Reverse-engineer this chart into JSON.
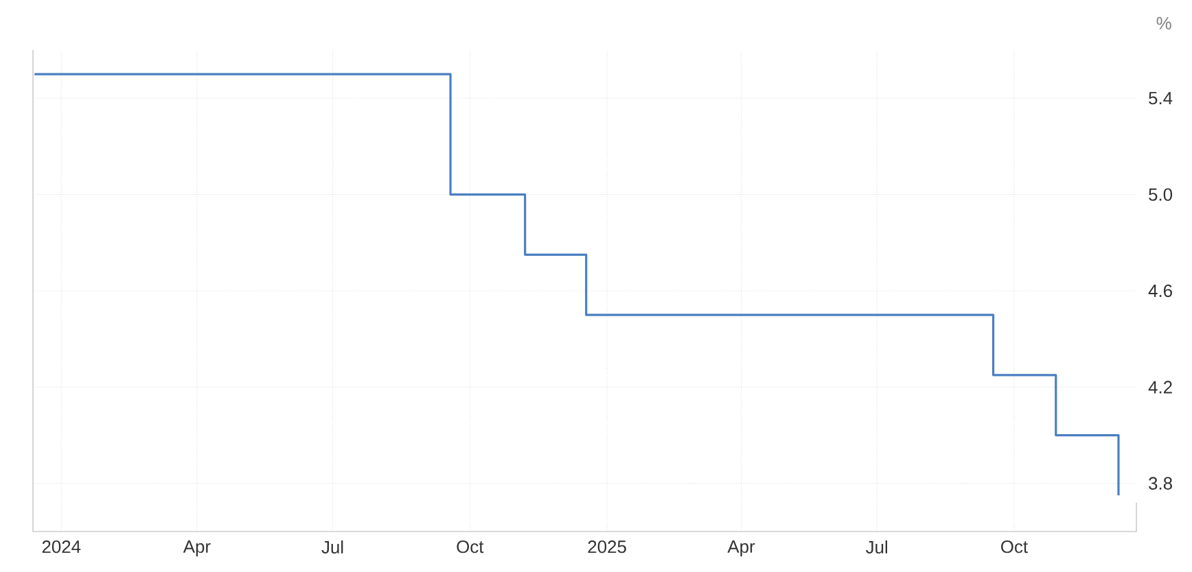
{
  "chart_data": {
    "type": "step",
    "ylabel": "%",
    "x": [
      "2023-12-14",
      "2024-09-18",
      "2024-11-07",
      "2024-12-18",
      "2025-09-17",
      "2025-10-29",
      "2025-12-10"
    ],
    "values": [
      5.5,
      5.0,
      4.75,
      4.5,
      4.25,
      4.0,
      3.75
    ],
    "color": "#4a7fc1",
    "xlim": [
      "2023-12-13",
      "2025-12-22"
    ],
    "ylim": [
      3.6,
      5.6
    ],
    "xticks": [
      {
        "value": "2024-01-01",
        "label": "2024"
      },
      {
        "value": "2024-04-01",
        "label": "Apr"
      },
      {
        "value": "2024-07-01",
        "label": "Jul"
      },
      {
        "value": "2024-10-01",
        "label": "Oct"
      },
      {
        "value": "2025-01-01",
        "label": "2025"
      },
      {
        "value": "2025-04-01",
        "label": "Apr"
      },
      {
        "value": "2025-07-01",
        "label": "Jul"
      },
      {
        "value": "2025-10-01",
        "label": "Oct"
      }
    ],
    "yticks": [
      3.8,
      4.2,
      4.6,
      {
        "value": 5.0,
        "label": "5.0"
      },
      5.4
    ],
    "grid": true
  }
}
